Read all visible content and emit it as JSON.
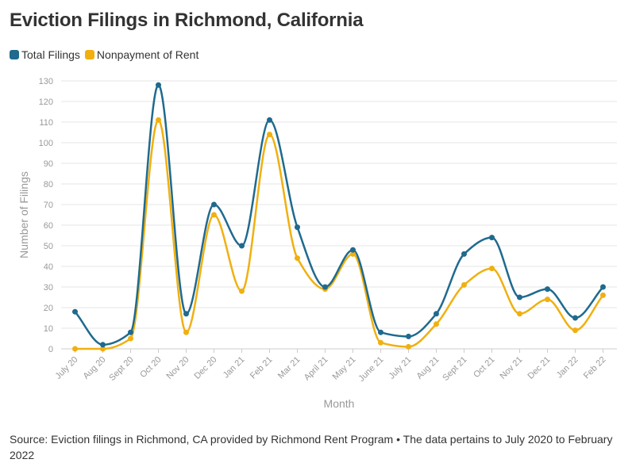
{
  "title": "Eviction Filings in Richmond, California",
  "source": "Source: Eviction filings in Richmond, CA provided by Richmond Rent Program • The data pertains to July 2020 to February 2022",
  "colors": {
    "total": "#1f6a8e",
    "nonpayment": "#f0b010",
    "grid": "#e6e6e6",
    "axis_text": "#999999"
  },
  "chart_data": {
    "type": "line",
    "categories": [
      "July 20",
      "Aug 20",
      "Sept 20",
      "Oct 20",
      "Nov 20",
      "Dec 20",
      "Jan 21",
      "Feb 21",
      "Mar 21",
      "April 21",
      "May 21",
      "June 21",
      "July 21",
      "Aug 21",
      "Sept 21",
      "Oct 21",
      "Nov 21",
      "Dec 21",
      "Jan 22",
      "Feb 22"
    ],
    "series": [
      {
        "name": "Total Filings",
        "color": "#1f6a8e",
        "values": [
          18,
          2,
          8,
          128,
          17,
          70,
          50,
          111,
          59,
          30,
          48,
          8,
          6,
          17,
          46,
          54,
          25,
          29,
          15,
          30
        ]
      },
      {
        "name": "Nonpayment of Rent",
        "color": "#f0b010",
        "values": [
          0,
          0,
          5,
          111,
          8,
          65,
          28,
          104,
          44,
          29,
          46,
          3,
          1,
          12,
          31,
          39,
          17,
          24,
          9,
          26
        ]
      }
    ],
    "xlabel": "Month",
    "ylabel": "Number of Filings",
    "ylim": [
      0,
      130
    ],
    "yticks": [
      0,
      10,
      20,
      30,
      40,
      50,
      60,
      70,
      80,
      90,
      100,
      110,
      120,
      130
    ],
    "grid": true,
    "legend_position": "top-left"
  }
}
